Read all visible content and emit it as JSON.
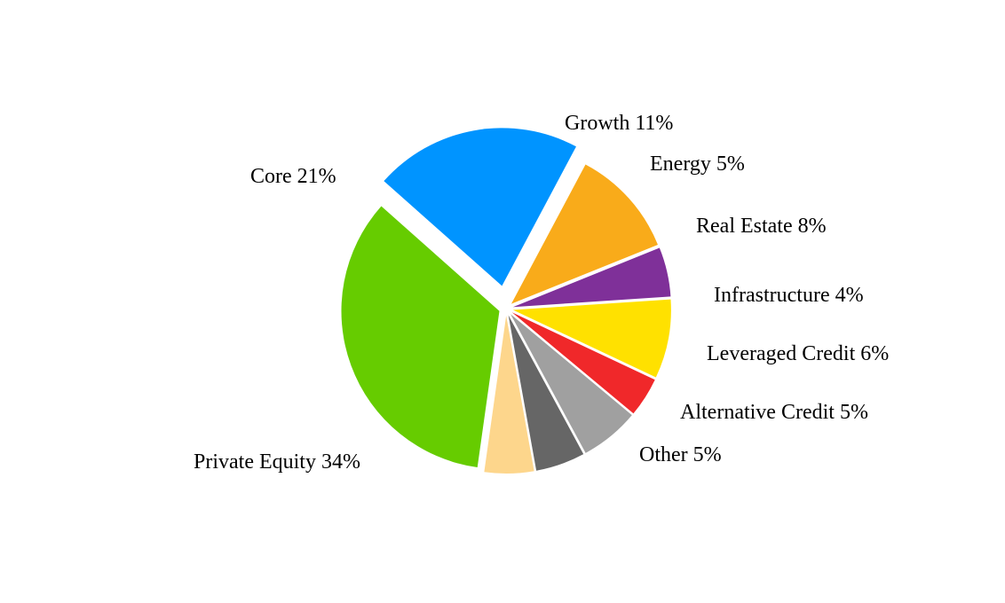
{
  "chart_data": {
    "type": "pie",
    "title": "",
    "start_angle": "clockwise from about 1 o'clock; Core slice exploded",
    "slices": [
      {
        "id": "growth",
        "label": "Growth 11%",
        "name": "Growth",
        "value": 11,
        "color": "#F9AB1A"
      },
      {
        "id": "energy",
        "label": "Energy 5%",
        "name": "Energy",
        "value": 5,
        "color": "#7F3099"
      },
      {
        "id": "real-estate",
        "label": "Real Estate 8%",
        "name": "Real Estate",
        "value": 8,
        "color": "#FFE100"
      },
      {
        "id": "infrastructure",
        "label": "Infrastructure 4%",
        "name": "Infrastructure",
        "value": 4,
        "color": "#F0282A"
      },
      {
        "id": "leveraged-credit",
        "label": "Leveraged Credit 6%",
        "name": "Leveraged Credit",
        "value": 6,
        "color": "#A0A0A0"
      },
      {
        "id": "alternative-credit",
        "label": "Alternative Credit 5%",
        "name": "Alternative Credit",
        "value": 5,
        "color": "#666666"
      },
      {
        "id": "other",
        "label": "Other 5%",
        "name": "Other",
        "value": 5,
        "color": "#FDD68C"
      },
      {
        "id": "private-equity",
        "label": "Private Equity 34%",
        "name": "Private Equity",
        "value": 34,
        "color": "#66CC00"
      },
      {
        "id": "core",
        "label": "Core 21%",
        "name": "Core",
        "value": 21,
        "color": "#0094FF"
      }
    ]
  }
}
